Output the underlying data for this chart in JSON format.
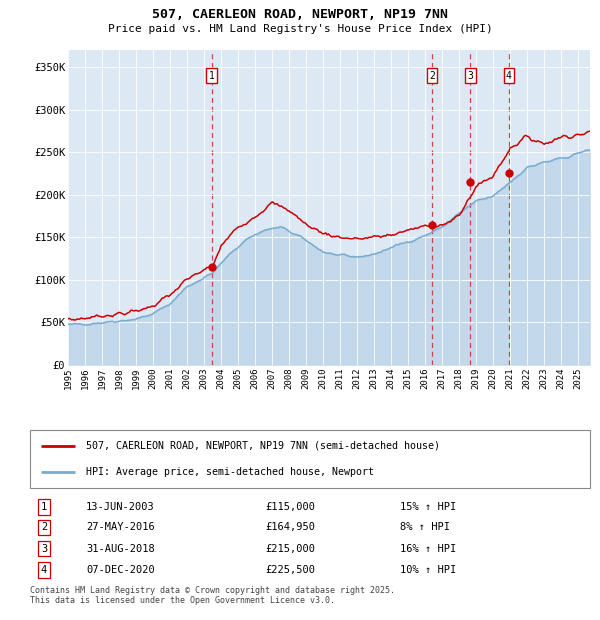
{
  "title1": "507, CAERLEON ROAD, NEWPORT, NP19 7NN",
  "title2": "Price paid vs. HM Land Registry's House Price Index (HPI)",
  "legend_red": "507, CAERLEON ROAD, NEWPORT, NP19 7NN (semi-detached house)",
  "legend_blue": "HPI: Average price, semi-detached house, Newport",
  "transactions": [
    {
      "num": 1,
      "date": "13-JUN-2003",
      "price": 115000,
      "pct": "15%",
      "dir": "↑"
    },
    {
      "num": 2,
      "date": "27-MAY-2016",
      "price": 164950,
      "pct": "8%",
      "dir": "↑"
    },
    {
      "num": 3,
      "date": "31-AUG-2018",
      "price": 215000,
      "pct": "16%",
      "dir": "↑"
    },
    {
      "num": 4,
      "date": "07-DEC-2020",
      "price": 225500,
      "pct": "10%",
      "dir": "↑"
    }
  ],
  "transaction_years": [
    2003.45,
    2016.41,
    2018.67,
    2020.93
  ],
  "ylim": [
    0,
    370000
  ],
  "yticks": [
    0,
    50000,
    100000,
    150000,
    200000,
    250000,
    300000,
    350000
  ],
  "ytick_labels": [
    "£0",
    "£50K",
    "£100K",
    "£150K",
    "£200K",
    "£250K",
    "£300K",
    "£350K"
  ],
  "xlim_start": 1995.0,
  "xlim_end": 2025.7,
  "plot_bg_color": "#dce9f5",
  "footer": "Contains HM Land Registry data © Crown copyright and database right 2025.\nThis data is licensed under the Open Government Licence v3.0.",
  "red_color": "#cc0000",
  "blue_color": "#7aabcf",
  "dot_color": "#cc0000",
  "vline_color": "#cc4444",
  "grid_color": "#ffffff",
  "label_box_color": "#cc0000"
}
